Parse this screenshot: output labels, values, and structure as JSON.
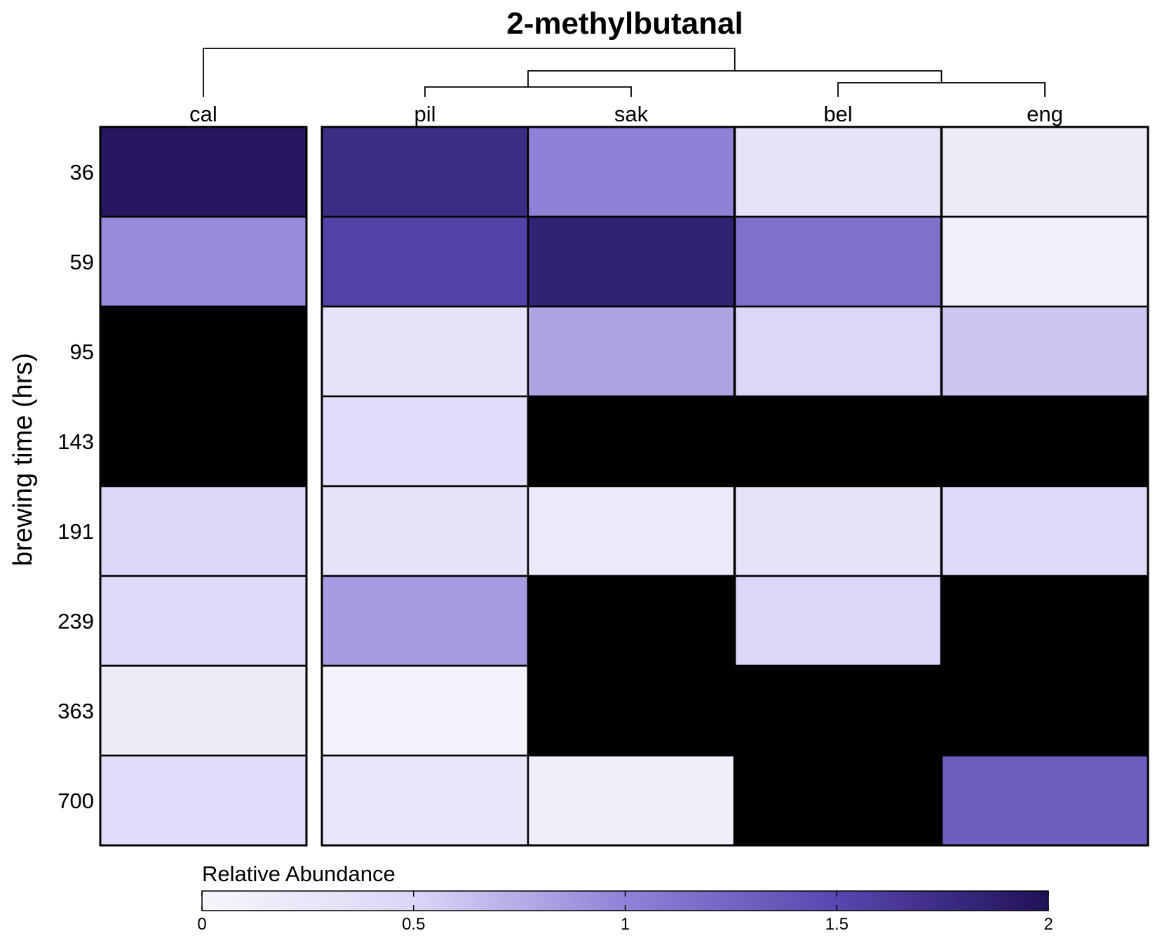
{
  "chart_data": {
    "type": "heatmap",
    "title": "2-methylbutanal",
    "ylabel": "brewing time (hrs)",
    "columns": [
      "cal",
      "pil",
      "sak",
      "bel",
      "eng"
    ],
    "rows": [
      "36",
      "59",
      "95",
      "143",
      "191",
      "239",
      "363",
      "700"
    ],
    "values": [
      [
        1.95,
        1.75,
        1.0,
        0.3,
        0.15
      ],
      [
        0.95,
        1.55,
        1.85,
        1.15,
        0.1
      ],
      [
        null,
        0.3,
        0.8,
        0.5,
        0.6
      ],
      [
        null,
        0.4,
        null,
        null,
        null
      ],
      [
        0.5,
        0.3,
        0.2,
        0.3,
        0.45
      ],
      [
        0.45,
        0.85,
        null,
        0.5,
        null
      ],
      [
        0.15,
        0.05,
        null,
        null,
        null
      ],
      [
        0.4,
        0.25,
        0.12,
        null,
        1.3
      ]
    ],
    "missing_color": "#000000",
    "color_scale": {
      "min": 0,
      "max": 2,
      "colors": [
        "#f7f6fb",
        "#dcd6f8",
        "#8f82d6",
        "#5a46b0",
        "#201257"
      ]
    },
    "dendrogram": {
      "groups": [
        [
          "cal"
        ],
        [
          "pil",
          "sak"
        ],
        [
          "bel",
          "eng"
        ]
      ]
    },
    "legend": {
      "title": "Relative Abundance",
      "ticks": [
        0,
        0.5,
        1,
        1.5,
        2
      ],
      "tick_labels": [
        "0",
        "0.5",
        "1",
        "1.5",
        "2"
      ],
      "position": "bottom"
    }
  }
}
